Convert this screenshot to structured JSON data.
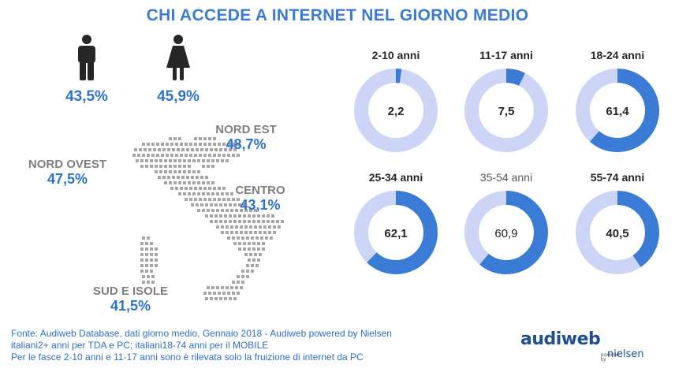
{
  "title": "CHI ACCEDE A INTERNET NEL GIORNO MEDIO",
  "gender": {
    "male": {
      "value": "43,5%",
      "icon": "male-person-icon"
    },
    "female": {
      "value": "45,9%",
      "icon": "female-person-icon"
    }
  },
  "regions": {
    "nord_est": {
      "name": "NORD EST",
      "value": "48,7%"
    },
    "nord_ovest": {
      "name": "NORD OVEST",
      "value": "47,5%"
    },
    "centro": {
      "name": "CENTRO",
      "value": "43,1%"
    },
    "sud_isole": {
      "name": "SUD E ISOLE",
      "value": "41,5%"
    }
  },
  "colors": {
    "accent": "#3a7bd5",
    "ring_fill": "#3a7bd5",
    "ring_track": "#cdd5f7",
    "region_name": "#7f7f7f",
    "map_dots": "#a6a6a6"
  },
  "chart_data": {
    "type": "donut",
    "max": 100,
    "series": [
      {
        "category": "2-10 anni",
        "value": 2.2,
        "label": "2,2"
      },
      {
        "category": "11-17 anni",
        "value": 7.5,
        "label": "7,5"
      },
      {
        "category": "18-24 anni",
        "value": 61.4,
        "label": "61,4"
      },
      {
        "category": "25-34 anni",
        "value": 62.1,
        "label": "62,1"
      },
      {
        "category": "35-54 anni",
        "value": 60.9,
        "label": "60,9"
      },
      {
        "category": "55-74 anni",
        "value": 40.5,
        "label": "40,5"
      }
    ]
  },
  "footer": {
    "line1": "Fonte: Audiweb Database, dati giorno medio, Gennaio 2018 - Audiweb powered by Nielsen",
    "line2": "italiani2+ anni per TDA e PC; italiani18-74 anni per il MOBILE",
    "line3": "Per le fasce 2-10 anni e 11-17 anni sono è rilevata solo la fruizione di internet da PC"
  },
  "logo": {
    "audiweb": "audiweb",
    "powered": "powered by",
    "nielsen": "nielsen"
  }
}
